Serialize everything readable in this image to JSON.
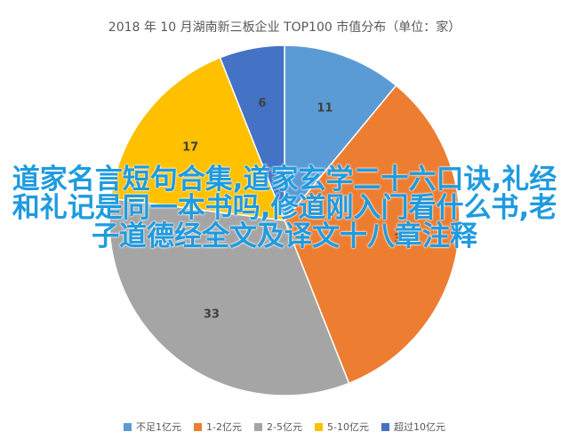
{
  "chart_data": {
    "type": "pie",
    "title": "2018 年 10 月湖南新三板企业 TOP100 市值分布（单位：家）",
    "categories": [
      "不足1亿元",
      "1-2亿元",
      "2-5亿元",
      "5-10亿元",
      "超过10亿元"
    ],
    "values": [
      11,
      33,
      33,
      17,
      6
    ],
    "colors": [
      "#5B9BD5",
      "#ED7D31",
      "#A5A5A5",
      "#FFC000",
      "#4472C4"
    ],
    "legend_position": "bottom",
    "data_labels": true
  },
  "overlay_text": "道家名言短句合集,道家玄学二十六口诀,礼经和礼记是同一本书吗,修道刚入门看什么书,老子道德经全文及译文十八章注释"
}
